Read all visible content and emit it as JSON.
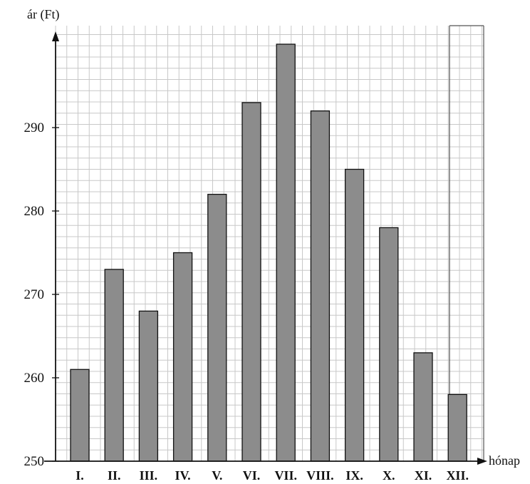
{
  "chart_data": {
    "type": "bar",
    "title": "",
    "xlabel": "hónap",
    "ylabel": "ár (Ft)",
    "ylim": [
      250,
      302
    ],
    "yticks": [
      250,
      260,
      270,
      280,
      290
    ],
    "categories": [
      "I.",
      "II.",
      "III.",
      "IV.",
      "V.",
      "VI.",
      "VII.",
      "VIII.",
      "IX.",
      "X.",
      "XI.",
      "XII."
    ],
    "values": [
      261,
      273,
      268,
      275,
      282,
      293,
      300,
      292,
      285,
      278,
      263,
      258
    ],
    "grid": true,
    "colors": {
      "bar": "#8c8c8c",
      "bar_stroke": "#111111",
      "grid": "#c8c8c8",
      "axis": "#111111"
    }
  }
}
